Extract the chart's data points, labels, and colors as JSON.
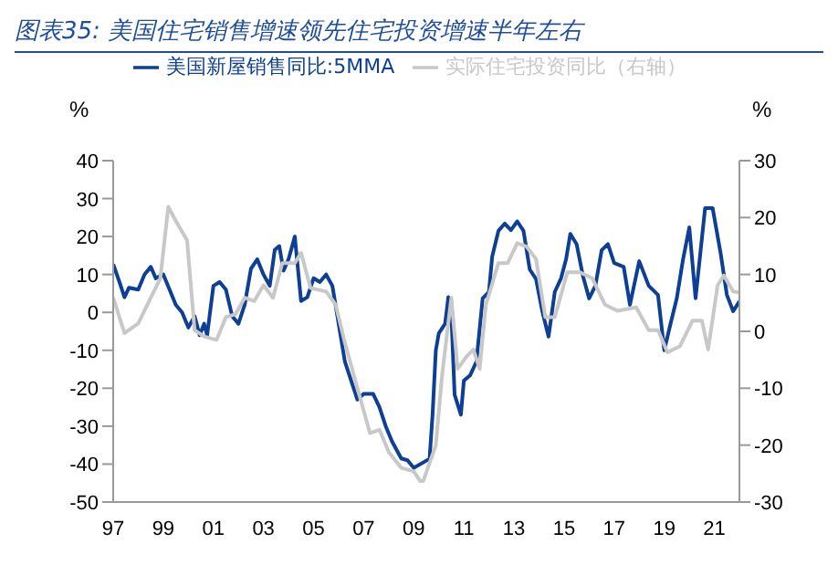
{
  "chart_data": {
    "type": "line",
    "title": "图表35: 美国住宅销售增速领先住宅投资增速半年左右",
    "ylabel": "%",
    "y2label": "%",
    "xlim": [
      1997,
      2022
    ],
    "xticks": [
      {
        "value": 1997,
        "label": "97"
      },
      {
        "value": 1999,
        "label": "99"
      },
      {
        "value": 2001,
        "label": "01"
      },
      {
        "value": 2003,
        "label": "03"
      },
      {
        "value": 2005,
        "label": "05"
      },
      {
        "value": 2007,
        "label": "07"
      },
      {
        "value": 2009,
        "label": "09"
      },
      {
        "value": 2011,
        "label": "11"
      },
      {
        "value": 2013,
        "label": "13"
      },
      {
        "value": 2015,
        "label": "15"
      },
      {
        "value": 2017,
        "label": "17"
      },
      {
        "value": 2019,
        "label": "19"
      },
      {
        "value": 2021,
        "label": "21"
      }
    ],
    "ylim": [
      -50,
      40
    ],
    "yticks": [
      -50,
      -40,
      -30,
      -20,
      -10,
      0,
      10,
      20,
      30,
      40
    ],
    "y2lim": [
      -30,
      30
    ],
    "y2ticks": [
      -30,
      -20,
      -10,
      0,
      10,
      20,
      30
    ],
    "legend": "top",
    "grid": false,
    "marker": "none",
    "line_style": "solid",
    "series": [
      {
        "name": "美国新屋销售同比:5MMA",
        "color": "#0d3f94",
        "x": [
          1997,
          1997.25,
          1997.45,
          1997.63,
          1998,
          1998.25,
          1998.5,
          1998.7,
          1999,
          1999.25,
          1999.5,
          1999.75,
          2000,
          2000.25,
          2000.45,
          2000.63,
          2000.75,
          2001,
          2001.25,
          2001.5,
          2001.75,
          2002,
          2002.25,
          2002.5,
          2002.75,
          2003,
          2003.25,
          2003.45,
          2003.63,
          2003.8,
          2004,
          2004.25,
          2004.5,
          2004.75,
          2005,
          2005.25,
          2005.5,
          2005.75,
          2006,
          2006.25,
          2006.5,
          2006.75,
          2007,
          2007.38,
          2007.63,
          2007.88,
          2008.13,
          2008.5,
          2008.75,
          2009,
          2009.63,
          2009.75,
          2009.88,
          2010,
          2010.25,
          2010.38,
          2010.5,
          2010.63,
          2010.88,
          2011,
          2011.25,
          2011.5,
          2011.75,
          2012,
          2012.13,
          2012.38,
          2012.63,
          2012.88,
          2013.13,
          2013.38,
          2013.63,
          2013.88,
          2014.13,
          2014.38,
          2014.63,
          2014.88,
          2015.08,
          2015.25,
          2015.5,
          2015.75,
          2016,
          2016.25,
          2016.5,
          2016.75,
          2017,
          2017.38,
          2017.63,
          2018,
          2018.38,
          2018.75,
          2019,
          2019.25,
          2019.5,
          2019.75,
          2020,
          2020.25,
          2020.63,
          2020.93,
          2021.25,
          2021.5,
          2021.75,
          2022
        ],
        "values": [
          12.7,
          8,
          4,
          6.5,
          6,
          10,
          12,
          9,
          10,
          6,
          2,
          0,
          -4,
          -1,
          -6,
          -3,
          -6,
          7,
          8,
          6,
          -1,
          -3,
          2,
          11.5,
          14,
          10,
          7,
          16.5,
          17.5,
          11,
          14,
          20,
          3,
          4,
          9,
          8,
          10,
          7,
          -3,
          -13,
          -18,
          -23,
          -21.5,
          -21.5,
          -25,
          -30,
          -34,
          -38.5,
          -39,
          -41,
          -38.6,
          -27,
          -10,
          -5.5,
          -3,
          4,
          -0.5,
          -21.7,
          -27,
          -18,
          -16.6,
          -13,
          3.7,
          5.4,
          14.7,
          21.5,
          23.4,
          21.7,
          24,
          21.5,
          11.3,
          8.8,
          0.3,
          -6.4,
          5.4,
          9,
          14,
          20.7,
          18,
          9.7,
          3.7,
          7,
          16.4,
          18,
          13,
          12,
          2,
          13.5,
          7,
          4.6,
          -10,
          -3,
          3.7,
          14,
          22.4,
          3.7,
          27.5,
          27.5,
          15.6,
          4.6,
          0.3,
          2.9
        ]
      },
      {
        "name": "实际住宅投资同比（右轴）",
        "color": "#c8c8c8",
        "axis": "y2",
        "x": [
          1997,
          1997.45,
          1998,
          1998.5,
          1998.88,
          1999.2,
          1999.5,
          1999.95,
          2000.25,
          2000.63,
          2001.13,
          2001.5,
          2001.88,
          2002.25,
          2002.63,
          2003,
          2003.38,
          2003.75,
          2004.25,
          2004.5,
          2004.88,
          2005.5,
          2005.88,
          2006.25,
          2006.75,
          2007.25,
          2007.63,
          2008,
          2008.5,
          2009,
          2009.25,
          2009.38,
          2009.88,
          2010.13,
          2010.5,
          2010.75,
          2011.13,
          2011.38,
          2011.63,
          2011.88,
          2012.38,
          2012.75,
          2013.13,
          2013.5,
          2013.88,
          2014.25,
          2014.63,
          2015.13,
          2015.63,
          2016.13,
          2016.63,
          2017.13,
          2017.88,
          2018.38,
          2018.75,
          2019.13,
          2019.63,
          2020.13,
          2020.5,
          2020.75,
          2021.13,
          2021.38,
          2021.75,
          2022
        ],
        "values": [
          5.9,
          -0.3,
          1.4,
          5.9,
          9.3,
          21.9,
          19.4,
          16,
          0.2,
          -0.9,
          -1.5,
          2.5,
          3,
          5.9,
          5.3,
          8.1,
          5.9,
          12,
          12,
          13.8,
          7.6,
          7,
          4.7,
          -2,
          -10,
          -17.9,
          -17.3,
          -21.2,
          -24,
          -24.6,
          -26.3,
          -26.3,
          -20,
          -7.7,
          5.9,
          -6.6,
          -4.3,
          -3.2,
          -6.6,
          4.7,
          12,
          12,
          15.5,
          14.9,
          12.7,
          2.5,
          2.5,
          10.4,
          10.4,
          9.3,
          4.7,
          3.6,
          4.2,
          0.2,
          0.2,
          -3.7,
          -2.6,
          1.9,
          1.9,
          -3.2,
          8.1,
          9.8,
          7,
          6.8
        ]
      }
    ]
  }
}
